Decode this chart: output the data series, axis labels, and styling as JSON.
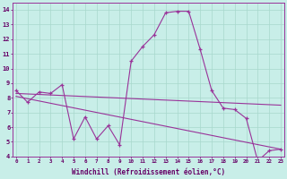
{
  "xlabel": "Windchill (Refroidissement éolien,°C)",
  "background_color": "#c8eee8",
  "grid_color": "#a8d8cc",
  "line_color": "#993399",
  "x_data": [
    0,
    1,
    2,
    3,
    4,
    5,
    6,
    7,
    8,
    9,
    10,
    11,
    12,
    13,
    14,
    15,
    16,
    17,
    18,
    19,
    20,
    21,
    22,
    23
  ],
  "y_main": [
    8.5,
    7.7,
    8.4,
    8.3,
    8.9,
    5.2,
    6.7,
    5.2,
    6.1,
    4.8,
    10.5,
    11.5,
    12.3,
    13.8,
    13.9,
    13.9,
    11.3,
    8.5,
    7.3,
    7.2,
    6.6,
    3.7,
    4.4,
    4.5
  ],
  "trend1_x": [
    0,
    23
  ],
  "trend1_y": [
    8.3,
    7.5
  ],
  "trend2_x": [
    0,
    23
  ],
  "trend2_y": [
    8.1,
    4.5
  ],
  "ylim_min": 4,
  "ylim_max": 14,
  "xlim_min": 0,
  "xlim_max": 23
}
